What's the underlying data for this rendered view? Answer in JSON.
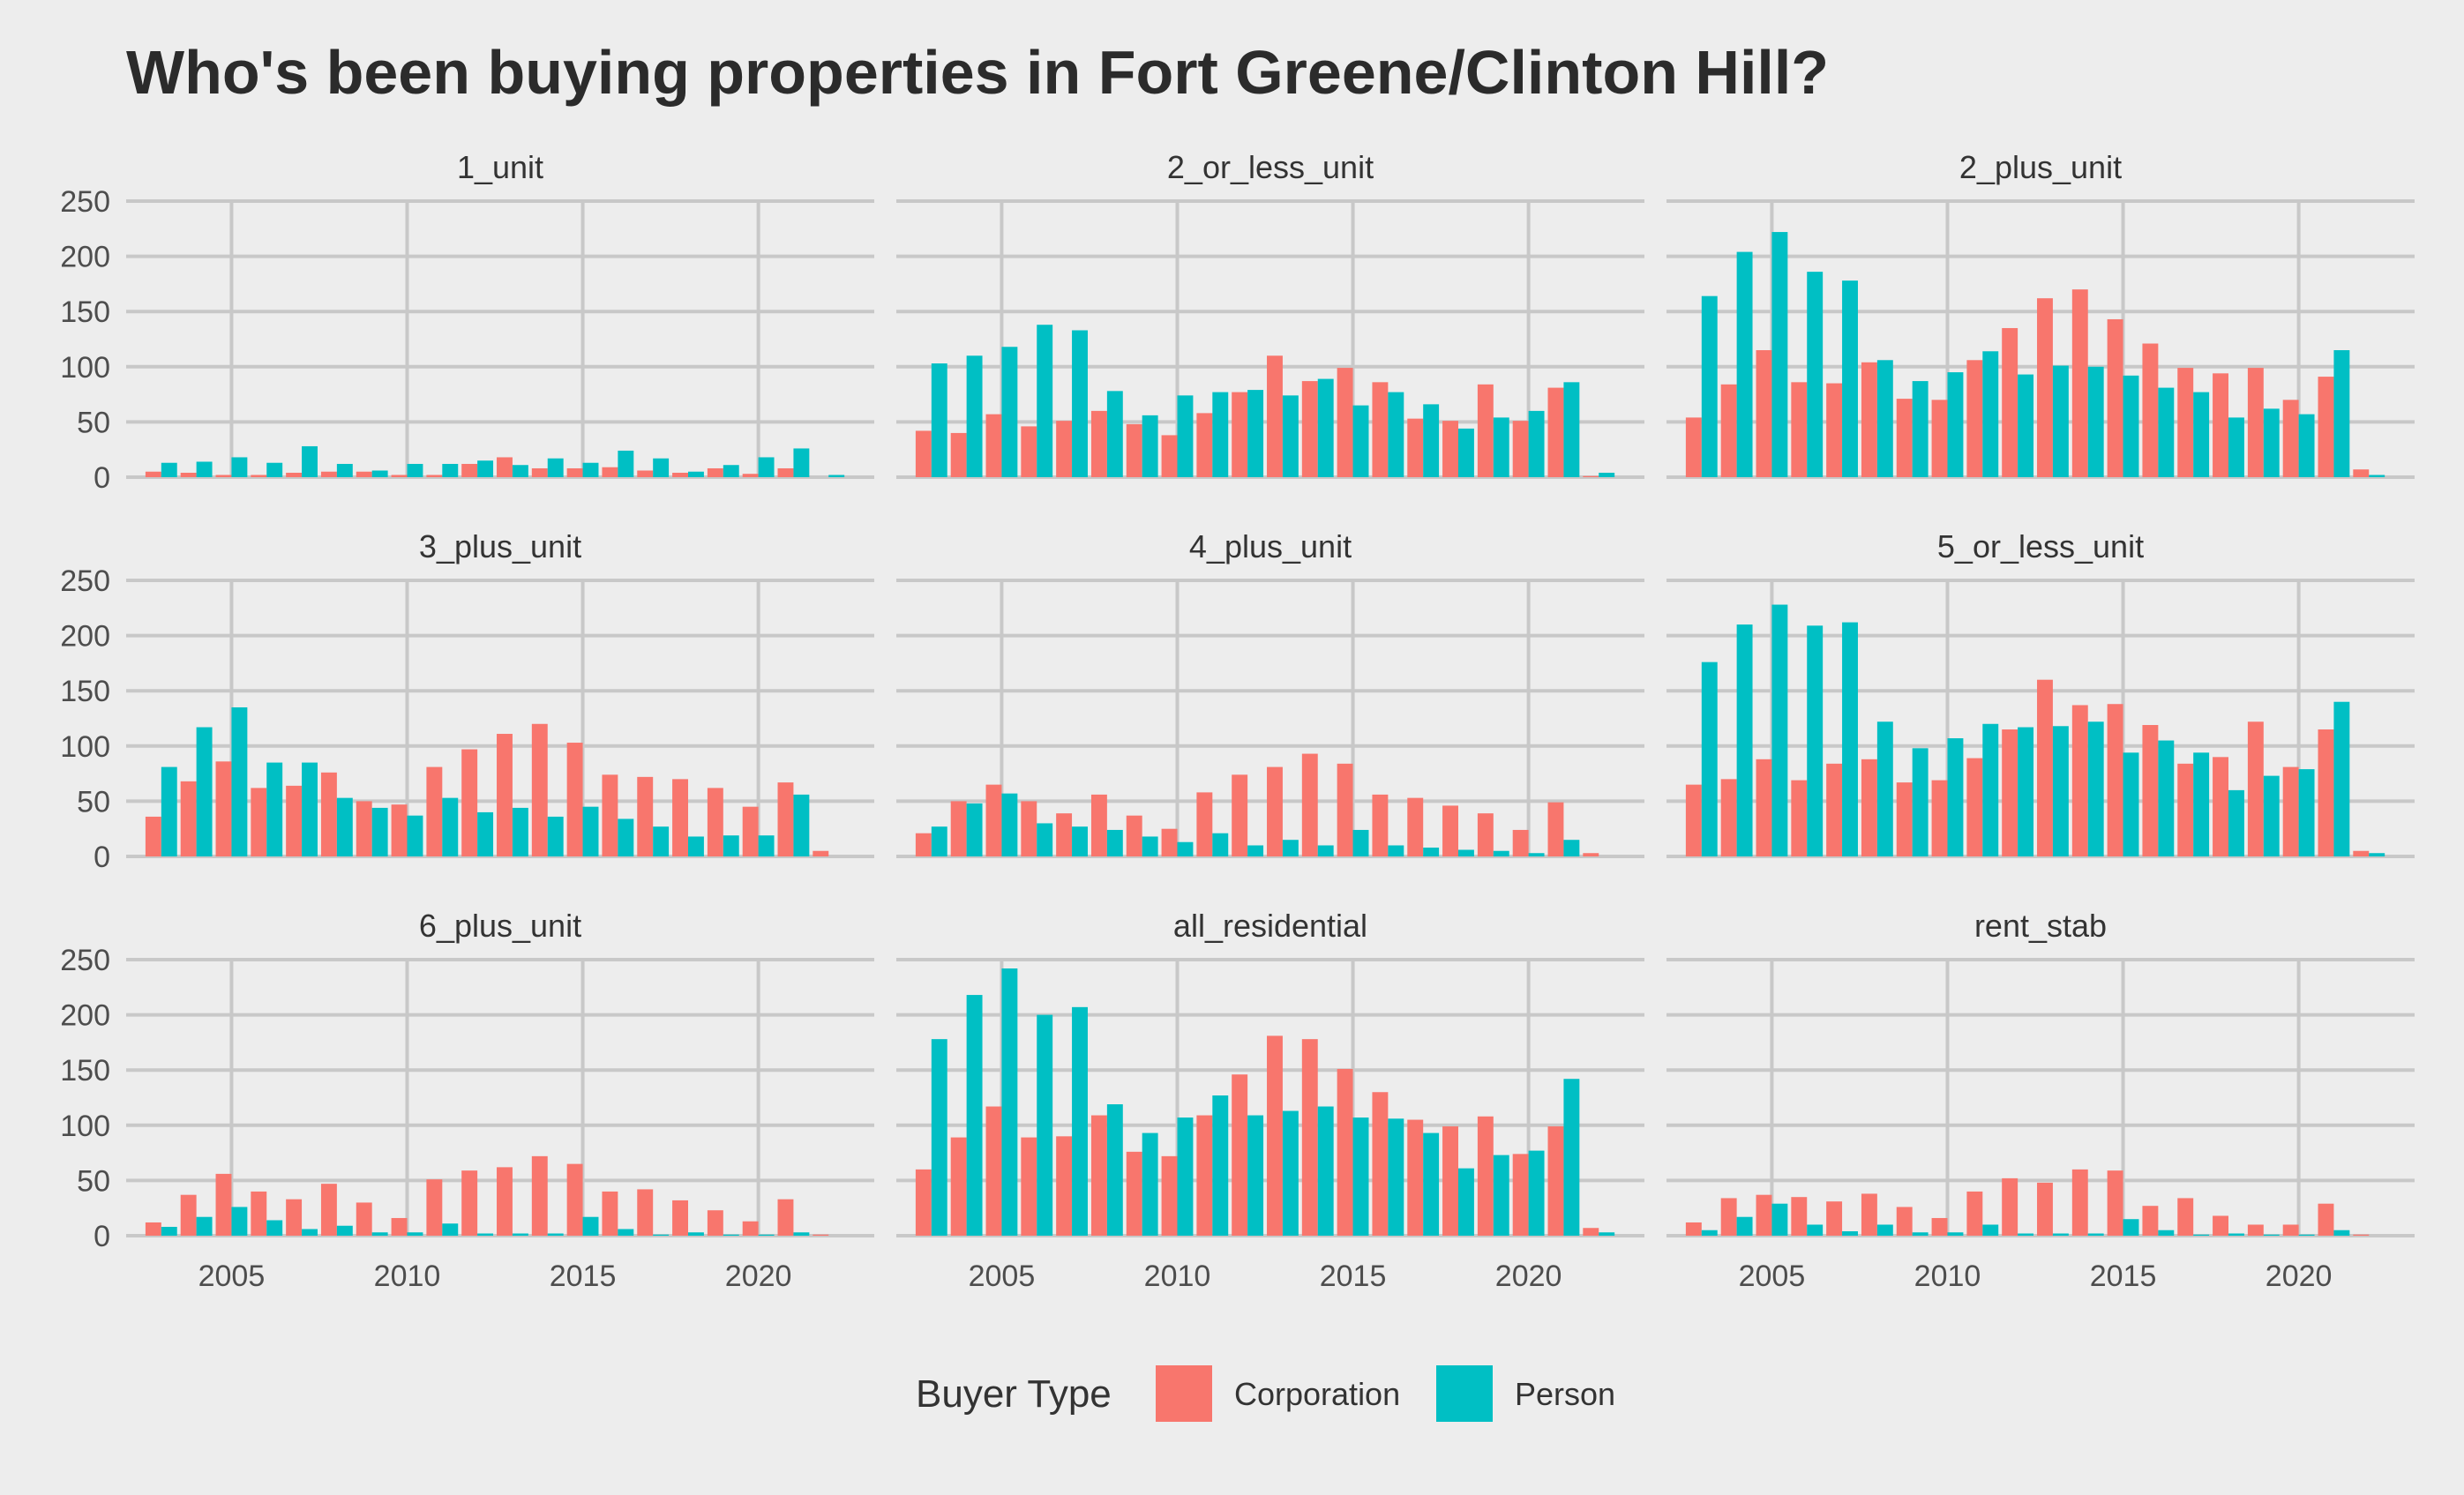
{
  "title": "Who's been buying properties in Fort Greene/Clinton Hill?",
  "chart_data": {
    "type": "bar",
    "layout": "facet_wrap",
    "ylim": [
      0,
      250
    ],
    "y_ticks": [
      0,
      50,
      100,
      150,
      200,
      250
    ],
    "xlim": [
      2002,
      2023.3
    ],
    "x_ticks": [
      2005,
      2010,
      2015,
      2020
    ],
    "grid": true,
    "legend": {
      "title": "Buyer Type",
      "placement": "bottom",
      "items": [
        {
          "name": "Corporation",
          "color": "#F8766D"
        },
        {
          "name": "Person",
          "color": "#00BFC4"
        }
      ]
    },
    "x": [
      2003,
      2004,
      2005,
      2006,
      2007,
      2008,
      2009,
      2010,
      2011,
      2012,
      2013,
      2014,
      2015,
      2016,
      2017,
      2018,
      2019,
      2020,
      2021,
      2022
    ],
    "panels": [
      {
        "label": "1_unit",
        "series": [
          {
            "name": "Corporation",
            "values": [
              5,
              4,
              2,
              2,
              4,
              5,
              5,
              2,
              2,
              12,
              18,
              8,
              8,
              9,
              6,
              4,
              8,
              3,
              8,
              0
            ]
          },
          {
            "name": "Person",
            "values": [
              13,
              14,
              18,
              13,
              28,
              12,
              6,
              12,
              12,
              15,
              11,
              17,
              13,
              24,
              17,
              5,
              11,
              18,
              26,
              2
            ]
          }
        ]
      },
      {
        "label": "2_or_less_unit",
        "series": [
          {
            "name": "Corporation",
            "values": [
              42,
              40,
              57,
              46,
              51,
              60,
              48,
              38,
              58,
              77,
              110,
              87,
              99,
              86,
              53,
              51,
              84,
              51,
              81,
              1
            ]
          },
          {
            "name": "Person",
            "values": [
              103,
              110,
              118,
              138,
              133,
              78,
              56,
              74,
              77,
              79,
              74,
              89,
              65,
              77,
              66,
              44,
              54,
              60,
              86,
              4
            ]
          }
        ]
      },
      {
        "label": "2_plus_unit",
        "series": [
          {
            "name": "Corporation",
            "values": [
              54,
              84,
              115,
              86,
              85,
              104,
              71,
              70,
              106,
              135,
              162,
              170,
              143,
              121,
              99,
              94,
              99,
              70,
              91,
              7
            ]
          },
          {
            "name": "Person",
            "values": [
              164,
              204,
              222,
              186,
              178,
              106,
              87,
              95,
              114,
              93,
              101,
              100,
              92,
              81,
              77,
              54,
              62,
              57,
              115,
              2
            ]
          }
        ]
      },
      {
        "label": "3_plus_unit",
        "series": [
          {
            "name": "Corporation",
            "values": [
              36,
              68,
              86,
              62,
              64,
              76,
              50,
              47,
              81,
              97,
              111,
              120,
              103,
              74,
              72,
              70,
              62,
              45,
              67,
              5
            ]
          },
          {
            "name": "Person",
            "values": [
              81,
              117,
              135,
              85,
              85,
              53,
              44,
              37,
              53,
              40,
              44,
              36,
              45,
              34,
              27,
              18,
              19,
              19,
              56,
              0
            ]
          }
        ]
      },
      {
        "label": "4_plus_unit",
        "series": [
          {
            "name": "Corporation",
            "values": [
              21,
              50,
              65,
              50,
              39,
              56,
              37,
              25,
              58,
              74,
              81,
              93,
              84,
              56,
              53,
              46,
              39,
              24,
              49,
              3
            ]
          },
          {
            "name": "Person",
            "values": [
              27,
              48,
              57,
              30,
              27,
              24,
              18,
              13,
              21,
              10,
              15,
              10,
              24,
              10,
              8,
              6,
              5,
              3,
              15,
              0
            ]
          }
        ]
      },
      {
        "label": "5_or_less_unit",
        "series": [
          {
            "name": "Corporation",
            "values": [
              65,
              70,
              88,
              69,
              84,
              88,
              67,
              69,
              89,
              115,
              160,
              137,
              138,
              119,
              84,
              90,
              122,
              81,
              115,
              5
            ]
          },
          {
            "name": "Person",
            "values": [
              176,
              210,
              228,
              209,
              212,
              122,
              98,
              107,
              120,
              117,
              118,
              122,
              94,
              105,
              94,
              60,
              73,
              79,
              140,
              3
            ]
          }
        ]
      },
      {
        "label": "6_plus_unit",
        "series": [
          {
            "name": "Corporation",
            "values": [
              12,
              37,
              56,
              40,
              33,
              47,
              30,
              16,
              51,
              59,
              62,
              72,
              65,
              40,
              42,
              32,
              23,
              13,
              33,
              1
            ]
          },
          {
            "name": "Person",
            "values": [
              8,
              17,
              26,
              14,
              6,
              9,
              3,
              3,
              11,
              2,
              2,
              2,
              17,
              6,
              1,
              3,
              1,
              1,
              3,
              0
            ]
          }
        ]
      },
      {
        "label": "all_residential",
        "series": [
          {
            "name": "Corporation",
            "values": [
              60,
              89,
              117,
              89,
              90,
              109,
              76,
              72,
              109,
              146,
              181,
              178,
              151,
              130,
              105,
              99,
              108,
              74,
              99,
              7
            ]
          },
          {
            "name": "Person",
            "values": [
              178,
              218,
              242,
              200,
              207,
              119,
              93,
              107,
              127,
              109,
              113,
              117,
              107,
              106,
              93,
              61,
              73,
              77,
              142,
              3
            ]
          }
        ]
      },
      {
        "label": "rent_stab",
        "series": [
          {
            "name": "Corporation",
            "values": [
              12,
              34,
              37,
              35,
              31,
              38,
              26,
              16,
              40,
              52,
              48,
              60,
              59,
              27,
              34,
              18,
              10,
              10,
              29,
              1
            ]
          },
          {
            "name": "Person",
            "values": [
              5,
              17,
              29,
              10,
              4,
              10,
              3,
              3,
              10,
              2,
              2,
              2,
              15,
              5,
              1,
              2,
              1,
              1,
              5,
              0
            ]
          }
        ]
      }
    ]
  }
}
